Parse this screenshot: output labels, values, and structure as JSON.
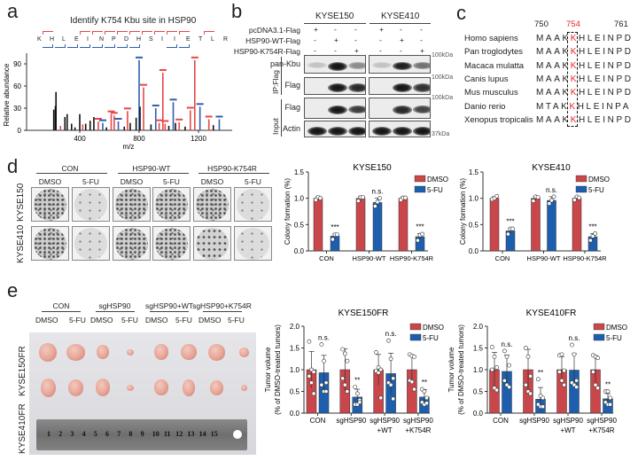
{
  "panels": {
    "a": "a",
    "b": "b",
    "c": "c",
    "d": "d",
    "e": "e"
  },
  "panel_a": {
    "title": "Identify  K754 Kbu site in HSP90",
    "sequence": [
      "K",
      "H",
      "L",
      "E",
      "I",
      "N",
      "P",
      "D",
      "H",
      "S",
      "I",
      "I",
      "E",
      "T",
      "L",
      "R"
    ],
    "colors": {
      "y_ions": "#e8474a",
      "b_ions": "#2f5fb0",
      "other": "#111111"
    }
  },
  "panel_b": {
    "cell_lines": [
      "KYSE150",
      "KYSE410"
    ],
    "conditions": [
      {
        "label": "pcDNA3.1-Flag",
        "marks": [
          "+",
          "-",
          "-",
          "+",
          "-",
          "-"
        ]
      },
      {
        "label": "HSP90-WT-Flag",
        "marks": [
          "-",
          "+",
          "-",
          "-",
          "+",
          "-"
        ]
      },
      {
        "label": "HSP90-K754R-Flag",
        "marks": [
          "-",
          "-",
          "+",
          "-",
          "-",
          "+"
        ]
      }
    ],
    "blots": [
      {
        "label": "pan-Kbu",
        "kda": "100kDa",
        "intensity": [
          0.05,
          1,
          0.35,
          0.05,
          0.95,
          0.5
        ]
      },
      {
        "label": "Flag",
        "kda": "100kDa",
        "intensity": [
          0,
          1,
          0.9,
          0,
          1,
          0.85
        ]
      },
      {
        "label": "Flag",
        "kda": "100kDa",
        "intensity": [
          0,
          1,
          0.8,
          0,
          0.9,
          0.75
        ]
      },
      {
        "label": "Actin",
        "kda": "37kDa",
        "intensity": [
          1,
          1,
          1,
          1,
          1,
          1
        ]
      }
    ],
    "group_labels": {
      "ip": "IP:Flag",
      "input": "Input"
    }
  },
  "panel_c": {
    "positions": {
      "start": "750",
      "site": "754",
      "end": "761"
    },
    "site_color": "#e8232a",
    "species": [
      {
        "name": "Homo sapiens",
        "pre": "MAAK",
        "site": "K",
        "post": "HLEINPD"
      },
      {
        "name": "Pan troglodytes",
        "pre": "MAAK",
        "site": "K",
        "post": "HLEINPD"
      },
      {
        "name": "Macaca mulatta",
        "pre": "MAAK",
        "site": "K",
        "post": "HLEINPD"
      },
      {
        "name": "Canis lupus",
        "pre": "MAAK",
        "site": "K",
        "post": "HLEINPD"
      },
      {
        "name": "Mus musculus",
        "pre": "MAAK",
        "site": "K",
        "post": "HLEINPD"
      },
      {
        "name": "Danio rerio",
        "pre": "MTAK",
        "site": "K",
        "post": "HLEINPA"
      },
      {
        "name": "Xenopus tropicalis",
        "pre": "MAAK",
        "site": "K",
        "post": "HLEINPD"
      }
    ]
  },
  "panel_d": {
    "groups": [
      "CON",
      "HSP90-WT",
      "HSP90-K754R"
    ],
    "treatments": [
      "DMSO",
      "5-FU",
      "DMSO",
      "5-FU",
      "DMSO",
      "5-FU"
    ],
    "rows": [
      "KYSE150",
      "KYSE410"
    ]
  },
  "panel_e": {
    "groups": [
      "CON",
      "sgHSP90",
      "sgHSP90+WT",
      "sgHSP90+K754R"
    ],
    "treatments": [
      "DMSO",
      "5-FU",
      "DMSO",
      "5-FU",
      "DMSO",
      "5-FU",
      "DMSO",
      "5-FU"
    ],
    "rows": [
      "KYSE150FR",
      "KYSE410FR"
    ],
    "ruler_numbers": [
      "1",
      "2",
      "3",
      "4",
      "5",
      "6",
      "7",
      "8",
      "9",
      "10",
      "11",
      "12",
      "13",
      "14",
      "15"
    ]
  },
  "chart_data": [
    {
      "id": "spectrum",
      "type": "bar",
      "xlabel": "m/z",
      "ylabel": "Relative abundance",
      "xticks": [
        "400",
        "800",
        "1200"
      ],
      "xtick_values": [
        400,
        800,
        1200
      ],
      "yticks": [
        "0",
        "30",
        "60",
        "90"
      ],
      "ytick_values": [
        0,
        30,
        60,
        90
      ],
      "xlim": [
        200,
        1560
      ],
      "ylim": [
        0,
        100
      ],
      "peaks": [
        {
          "mz": 225,
          "i": 28,
          "c": "other"
        },
        {
          "mz": 240,
          "i": 52,
          "c": "other"
        },
        {
          "mz": 236,
          "i": 33,
          "c": "other"
        },
        {
          "mz": 270,
          "i": 6,
          "c": "y"
        },
        {
          "mz": 300,
          "i": 18,
          "c": "other"
        },
        {
          "mz": 315,
          "i": 22,
          "c": "other"
        },
        {
          "mz": 345,
          "i": 9,
          "c": "other"
        },
        {
          "mz": 368,
          "i": 4,
          "c": "other"
        },
        {
          "mz": 400,
          "i": 22,
          "c": "other"
        },
        {
          "mz": 420,
          "i": 8,
          "c": "y"
        },
        {
          "mz": 440,
          "i": 9,
          "c": "other"
        },
        {
          "mz": 470,
          "i": 13,
          "c": "other"
        },
        {
          "mz": 495,
          "i": 18,
          "c": "other"
        },
        {
          "mz": 525,
          "i": 12,
          "c": "y"
        },
        {
          "mz": 555,
          "i": 10,
          "c": "b"
        },
        {
          "mz": 580,
          "i": 4,
          "c": "other"
        },
        {
          "mz": 612,
          "i": 22,
          "c": "y"
        },
        {
          "mz": 632,
          "i": 20,
          "c": "y"
        },
        {
          "mz": 660,
          "i": 12,
          "c": "b"
        },
        {
          "mz": 700,
          "i": 5,
          "c": "other"
        },
        {
          "mz": 722,
          "i": 26,
          "c": "y"
        },
        {
          "mz": 740,
          "i": 10,
          "c": "other"
        },
        {
          "mz": 780,
          "i": 17,
          "c": "other"
        },
        {
          "mz": 800,
          "i": 95,
          "c": "b"
        },
        {
          "mz": 806,
          "i": 32,
          "c": "other"
        },
        {
          "mz": 830,
          "i": 58,
          "c": "y"
        },
        {
          "mz": 880,
          "i": 8,
          "c": "other"
        },
        {
          "mz": 912,
          "i": 30,
          "c": "b"
        },
        {
          "mz": 935,
          "i": 10,
          "c": "y"
        },
        {
          "mz": 960,
          "i": 78,
          "c": "y"
        },
        {
          "mz": 975,
          "i": 9,
          "c": "y"
        },
        {
          "mz": 1000,
          "i": 6,
          "c": "other"
        },
        {
          "mz": 1030,
          "i": 38,
          "c": "b"
        },
        {
          "mz": 1045,
          "i": 10,
          "c": "other"
        },
        {
          "mz": 1070,
          "i": 11,
          "c": "y"
        },
        {
          "mz": 1110,
          "i": 5,
          "c": "other"
        },
        {
          "mz": 1145,
          "i": 27,
          "c": "y"
        },
        {
          "mz": 1175,
          "i": 95,
          "c": "y"
        },
        {
          "mz": 1210,
          "i": 32,
          "c": "b"
        },
        {
          "mz": 1270,
          "i": 15,
          "c": "y"
        },
        {
          "mz": 1300,
          "i": 7,
          "c": "other"
        },
        {
          "mz": 1340,
          "i": 15,
          "c": "b"
        }
      ]
    },
    {
      "id": "d1",
      "type": "bar",
      "title": "KYSE150",
      "ylabel": "Colony formation (%)",
      "ylim": [
        0,
        1.5
      ],
      "yticks": [
        "0.0",
        "0.5",
        "1.0",
        "1.5"
      ],
      "ytick_values": [
        0,
        0.5,
        1,
        1.5
      ],
      "categories": [
        [
          "CON"
        ],
        [
          "HSP90-WT"
        ],
        [
          "HSP90-K754R"
        ]
      ],
      "significance": [
        "***",
        "n.s.",
        "***"
      ],
      "series": [
        {
          "name": "DMSO",
          "color": "#c9464b",
          "values": [
            1,
            1,
            1
          ],
          "error": [
            0.03,
            0.04,
            0.03
          ],
          "points": [
            [
              0.97,
              1.02,
              1.0
            ],
            [
              0.95,
              1.02,
              1.02
            ],
            [
              0.97,
              1.01,
              1.01
            ]
          ]
        },
        {
          "name": "5-FU",
          "color": "#1d5fae",
          "values": [
            0.28,
            0.92,
            0.27
          ],
          "error": [
            0.04,
            0.08,
            0.06
          ],
          "points": [
            [
              0.22,
              0.31,
              0.31
            ],
            [
              0.85,
              0.93,
              1.0
            ],
            [
              0.2,
              0.3,
              0.32
            ]
          ]
        }
      ]
    },
    {
      "id": "d2",
      "type": "bar",
      "title": "KYSE410",
      "ylabel": "Colony formation (%)",
      "ylim": [
        0,
        1.5
      ],
      "yticks": [
        "0.0",
        "0.5",
        "1.0",
        "1.5"
      ],
      "ytick_values": [
        0,
        0.5,
        1,
        1.5
      ],
      "categories": [
        [
          "CON"
        ],
        [
          "HSP90-WT"
        ],
        [
          "HSP90-K754R"
        ]
      ],
      "significance": [
        "***",
        "n.s.",
        "***"
      ],
      "series": [
        {
          "name": "DMSO",
          "color": "#c9464b",
          "values": [
            1,
            1,
            1
          ],
          "error": [
            0.03,
            0.04,
            0.03
          ],
          "points": [
            [
              0.98,
              1.0,
              1.04
            ],
            [
              0.95,
              1.03,
              1.02
            ],
            [
              0.97,
              1.03,
              1.01
            ]
          ]
        },
        {
          "name": "5-FU",
          "color": "#1d5fae",
          "values": [
            0.38,
            0.96,
            0.27
          ],
          "error": [
            0.05,
            0.07,
            0.06
          ],
          "points": [
            [
              0.32,
              0.42,
              0.42
            ],
            [
              0.9,
              0.96,
              1.03
            ],
            [
              0.2,
              0.28,
              0.33
            ]
          ]
        }
      ]
    },
    {
      "id": "e1",
      "type": "bar",
      "title": "KYSE150FR",
      "ylabel": [
        "Tumor volume",
        "(% of DMSO-treated tumors)"
      ],
      "ylim": [
        0,
        2
      ],
      "yticks": [
        "0.0",
        "0.5",
        "1.0",
        "1.5",
        "2.0"
      ],
      "ytick_values": [
        0,
        0.5,
        1,
        1.5,
        2
      ],
      "categories": [
        [
          "CON"
        ],
        [
          "sgHSP90"
        ],
        [
          "sgHSP90",
          "+WT"
        ],
        [
          "sgHSP90",
          "+K754R"
        ]
      ],
      "significance": [
        "n.s.",
        "**",
        "n.s.",
        "**"
      ],
      "series": [
        {
          "name": "DMSO",
          "color": "#c9464b",
          "values": [
            1,
            1,
            1,
            1
          ],
          "error": [
            0.42,
            0.48,
            0.35,
            0.33
          ],
          "points": [
            [
              1.65,
              1.0,
              0.95,
              0.85,
              0.7,
              0.45
            ],
            [
              1.47,
              1.37,
              1.2,
              0.8,
              0.65,
              0.5
            ],
            [
              1.4,
              1.05,
              1.0,
              0.97,
              0.93,
              0.35
            ],
            [
              1.35,
              1.32,
              1.3,
              0.75,
              0.72,
              0.55
            ]
          ]
        },
        {
          "name": "5-FU",
          "color": "#1d5fae",
          "values": [
            0.93,
            0.37,
            0.91,
            0.37
          ],
          "error": [
            0.4,
            0.18,
            0.47,
            0.17
          ],
          "points": [
            [
              1.58,
              1.2,
              0.7,
              0.65,
              0.5,
              0.5
            ],
            [
              0.6,
              0.45,
              0.3,
              0.2,
              0.2,
              0.25
            ],
            [
              1.67,
              1.25,
              0.8,
              0.7,
              0.65,
              0.33
            ],
            [
              0.55,
              0.5,
              0.35,
              0.25,
              0.2,
              0.23
            ]
          ]
        }
      ]
    },
    {
      "id": "e2",
      "type": "bar",
      "title": "KYSE410FR",
      "ylabel": [
        "Tumor volume",
        "(% of DMSO-treated tumors)"
      ],
      "ylim": [
        0,
        2
      ],
      "yticks": [
        "0.0",
        "0.5",
        "1.0",
        "1.5",
        "2.0"
      ],
      "ytick_values": [
        0,
        0.5,
        1,
        1.5,
        2
      ],
      "categories": [
        [
          "CON"
        ],
        [
          "sgHSP90"
        ],
        [
          "sgHSP90",
          "+WT"
        ],
        [
          "sgHSP90",
          "+K754R"
        ]
      ],
      "significance": [
        "n.s.",
        "**",
        "n.s.",
        "**"
      ],
      "series": [
        {
          "name": "DMSO",
          "color": "#c9464b",
          "values": [
            1,
            1,
            1,
            1
          ],
          "error": [
            0.4,
            0.47,
            0.3,
            0.32
          ],
          "points": [
            [
              1.52,
              1.3,
              1.05,
              1.0,
              0.58,
              0.53
            ],
            [
              1.5,
              1.3,
              0.85,
              0.65,
              0.5,
              0.45
            ],
            [
              1.33,
              1.35,
              0.98,
              0.95,
              0.75,
              0.65
            ],
            [
              1.33,
              1.3,
              1.27,
              0.95,
              0.65,
              0.58
            ]
          ]
        },
        {
          "name": "5-FU",
          "color": "#1d5fae",
          "values": [
            0.96,
            0.32,
            0.99,
            0.33
          ],
          "error": [
            0.38,
            0.27,
            0.38,
            0.12
          ],
          "points": [
            [
              1.43,
              1.3,
              1.1,
              0.75,
              0.65,
              0.6
            ],
            [
              0.78,
              0.4,
              0.35,
              0.2,
              0.15,
              0.15
            ],
            [
              1.57,
              1.35,
              0.75,
              0.7,
              0.65,
              0.6
            ],
            [
              0.5,
              0.5,
              0.35,
              0.25,
              0.2,
              0.2
            ]
          ]
        }
      ]
    }
  ]
}
